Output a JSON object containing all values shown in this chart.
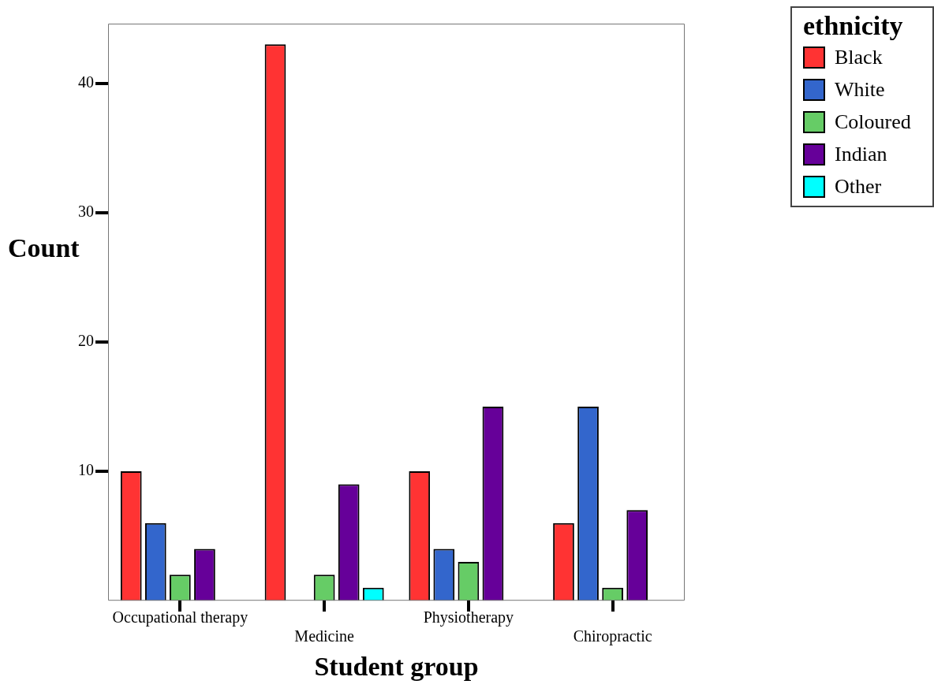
{
  "chart_data": {
    "type": "bar",
    "xlabel": "Student group",
    "ylabel": "Count",
    "legend_title": "ethnicity",
    "categories": [
      "Occupational therapy",
      "Medicine",
      "Physiotherapy",
      "Chiropractic"
    ],
    "series": [
      {
        "name": "Black",
        "color": "#ff3333",
        "values": [
          10,
          43,
          10,
          6
        ]
      },
      {
        "name": "White",
        "color": "#3366cc",
        "values": [
          6,
          null,
          4,
          15
        ]
      },
      {
        "name": "Coloured",
        "color": "#66cc66",
        "values": [
          2,
          2,
          3,
          1
        ]
      },
      {
        "name": "Indian",
        "color": "#660099",
        "values": [
          4,
          9,
          15,
          7
        ]
      },
      {
        "name": "Other",
        "color": "#00ffff",
        "values": [
          null,
          1,
          null,
          null
        ]
      }
    ],
    "ylim": [
      0,
      44.6
    ],
    "yticks": [
      10,
      20,
      30,
      40
    ],
    "grid": false,
    "legend": "top right"
  }
}
